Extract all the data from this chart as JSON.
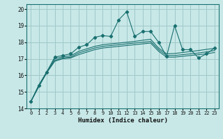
{
  "title": "",
  "xlabel": "Humidex (Indice chaleur)",
  "ylabel": "",
  "bg_color": "#c8e8e8",
  "grid_color": "#a0c8c8",
  "line_color": "#1a7070",
  "xlim": [
    -0.5,
    23.5
  ],
  "ylim": [
    14,
    20.3
  ],
  "yticks": [
    14,
    15,
    16,
    17,
    18,
    19,
    20
  ],
  "xticks": [
    0,
    1,
    2,
    3,
    4,
    5,
    6,
    7,
    8,
    9,
    10,
    11,
    12,
    13,
    14,
    15,
    16,
    17,
    18,
    19,
    20,
    21,
    22,
    23
  ],
  "x_vals": [
    0,
    1,
    2,
    3,
    4,
    5,
    6,
    7,
    8,
    9,
    10,
    11,
    12,
    13,
    14,
    15,
    16,
    17,
    18,
    19,
    20,
    21,
    22,
    23
  ],
  "line1_y": [
    14.4,
    15.4,
    16.2,
    17.1,
    17.2,
    17.3,
    17.7,
    17.85,
    18.3,
    18.4,
    18.35,
    19.35,
    19.85,
    18.35,
    18.65,
    18.65,
    18.0,
    17.15,
    19.0,
    17.55,
    17.55,
    17.05,
    17.3,
    17.65
  ],
  "lower_band_y": [
    14.4,
    15.3,
    16.15,
    16.85,
    17.0,
    17.05,
    17.25,
    17.4,
    17.55,
    17.65,
    17.7,
    17.75,
    17.8,
    17.85,
    17.9,
    17.95,
    17.45,
    17.1,
    17.1,
    17.15,
    17.2,
    17.25,
    17.3,
    17.38
  ],
  "mid_band_y": [
    14.4,
    15.35,
    16.18,
    16.9,
    17.05,
    17.1,
    17.35,
    17.5,
    17.65,
    17.75,
    17.8,
    17.85,
    17.9,
    17.95,
    18.0,
    18.05,
    17.55,
    17.2,
    17.2,
    17.25,
    17.3,
    17.35,
    17.42,
    17.5
  ],
  "upper_band_y": [
    14.4,
    15.4,
    16.21,
    17.0,
    17.12,
    17.18,
    17.45,
    17.6,
    17.75,
    17.85,
    17.9,
    17.95,
    18.0,
    18.05,
    18.12,
    18.18,
    17.65,
    17.3,
    17.32,
    17.38,
    17.44,
    17.5,
    17.57,
    17.63
  ]
}
